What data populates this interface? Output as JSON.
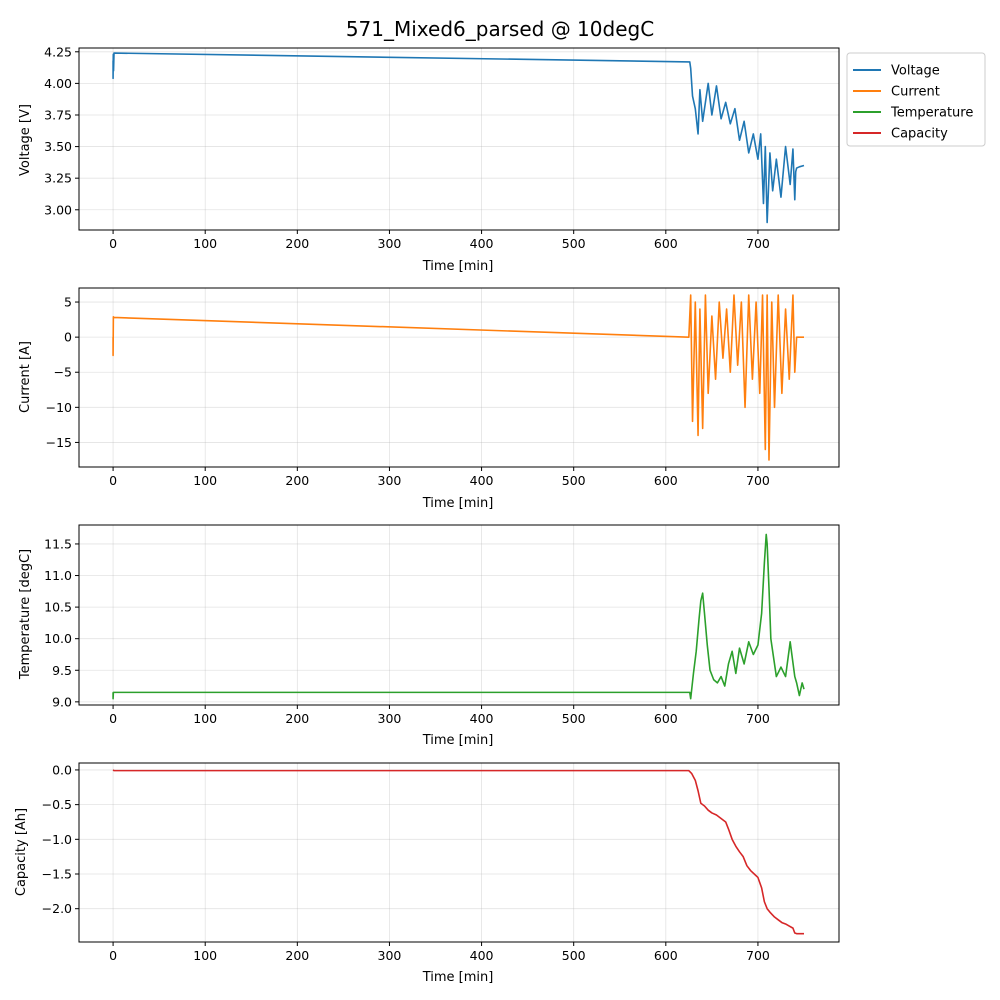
{
  "title": "571_Mixed6_parsed @ 10degC",
  "legend": {
    "placement": "outside-top-right",
    "entries": [
      {
        "label": "Voltage",
        "color": "#1f77b4"
      },
      {
        "label": "Current",
        "color": "#ff7f0e"
      },
      {
        "label": "Temperature",
        "color": "#2ca02c"
      },
      {
        "label": "Capacity",
        "color": "#d62728"
      }
    ]
  },
  "chart_data": [
    {
      "type": "line",
      "name": "voltage",
      "xlabel": "Time [min]",
      "ylabel": "Voltage [V]",
      "xlim": [
        -37,
        788
      ],
      "ylim": [
        2.84,
        4.28
      ],
      "xticks": [
        0,
        100,
        200,
        300,
        400,
        500,
        600,
        700
      ],
      "yticks": [
        3.0,
        3.25,
        3.5,
        3.75,
        4.0,
        4.25
      ],
      "ytick_labels": [
        "3.00",
        "3.25",
        "3.50",
        "3.75",
        "4.00",
        "4.25"
      ],
      "grid": true,
      "color": "#1f77b4",
      "series": [
        {
          "x": [
            0,
            0,
            0.2,
            0.5,
            1,
            626,
            627,
            629,
            632,
            635,
            637,
            640,
            643,
            646,
            650,
            655,
            660,
            665,
            670,
            675,
            680,
            685,
            690,
            695,
            700,
            703,
            706,
            708,
            710,
            713,
            716,
            720,
            725,
            730,
            735,
            738,
            740,
            741,
            742,
            745,
            750
          ],
          "y": [
            4.18,
            4.04,
            4.23,
            4.1,
            4.24,
            4.17,
            4.12,
            3.9,
            3.8,
            3.6,
            3.95,
            3.7,
            3.85,
            4.0,
            3.75,
            3.98,
            3.72,
            3.85,
            3.68,
            3.8,
            3.55,
            3.7,
            3.45,
            3.6,
            3.4,
            3.6,
            3.05,
            3.5,
            2.9,
            3.45,
            3.15,
            3.4,
            3.1,
            3.5,
            3.2,
            3.48,
            3.08,
            3.3,
            3.33,
            3.34,
            3.35
          ]
        }
      ]
    },
    {
      "type": "line",
      "name": "current",
      "xlabel": "Time [min]",
      "ylabel": "Current [A]",
      "xlim": [
        -37,
        788
      ],
      "ylim": [
        -18.5,
        7.0
      ],
      "xticks": [
        0,
        100,
        200,
        300,
        400,
        500,
        600,
        700
      ],
      "yticks": [
        -15,
        -10,
        -5,
        0,
        5
      ],
      "ytick_labels": [
        "−15",
        "−10",
        "−5",
        "0",
        "5"
      ],
      "grid": true,
      "color": "#ff7f0e",
      "series": [
        {
          "x": [
            0,
            0,
            0.3,
            1,
            625,
            627,
            629,
            632,
            635,
            637,
            640,
            643,
            646,
            650,
            654,
            658,
            662,
            666,
            670,
            674,
            678,
            682,
            686,
            690,
            694,
            698,
            702,
            705,
            708,
            710,
            712,
            715,
            718,
            722,
            726,
            730,
            734,
            738,
            740,
            742,
            750
          ],
          "y": [
            0,
            -2.6,
            2.9,
            2.8,
            0,
            6,
            -12,
            5,
            -14,
            4,
            -13,
            6,
            -8,
            3,
            -6,
            5,
            -3,
            4,
            -5,
            6,
            -4,
            5,
            -10,
            6,
            -6,
            5,
            -8,
            6,
            -16,
            6,
            -17.5,
            5,
            -10,
            6,
            -8,
            4,
            -6,
            6,
            -5,
            0,
            0
          ]
        }
      ]
    },
    {
      "type": "line",
      "name": "temperature",
      "xlabel": "Time [min]",
      "ylabel": "Temperature [degC]",
      "xlim": [
        -37,
        788
      ],
      "ylim": [
        8.95,
        11.8
      ],
      "xticks": [
        0,
        100,
        200,
        300,
        400,
        500,
        600,
        700
      ],
      "yticks": [
        9.0,
        9.5,
        10.0,
        10.5,
        11.0,
        11.5
      ],
      "ytick_labels": [
        "9.0",
        "9.5",
        "10.0",
        "10.5",
        "11.0",
        "11.5"
      ],
      "grid": true,
      "color": "#2ca02c",
      "series": [
        {
          "x": [
            0,
            0,
            0.3,
            1,
            626,
            627,
            630,
            633,
            636,
            638,
            640,
            642,
            645,
            648,
            652,
            656,
            660,
            664,
            668,
            672,
            676,
            680,
            685,
            690,
            695,
            700,
            704,
            707,
            709,
            710,
            712,
            714,
            717,
            720,
            725,
            730,
            735,
            740,
            742,
            745,
            748,
            750
          ],
          "y": [
            9.15,
            9.05,
            9.15,
            9.15,
            9.15,
            9.05,
            9.45,
            9.8,
            10.3,
            10.6,
            10.72,
            10.4,
            9.9,
            9.5,
            9.35,
            9.3,
            9.4,
            9.25,
            9.6,
            9.8,
            9.45,
            9.85,
            9.6,
            9.95,
            9.75,
            9.9,
            10.4,
            11.2,
            11.65,
            11.5,
            10.8,
            10.0,
            9.7,
            9.4,
            9.55,
            9.4,
            9.95,
            9.4,
            9.3,
            9.1,
            9.3,
            9.2
          ]
        }
      ]
    },
    {
      "type": "line",
      "name": "capacity",
      "xlabel": "Time [min]",
      "ylabel": "Capacity [Ah]",
      "xlim": [
        -37,
        788
      ],
      "ylim": [
        -2.48,
        0.1
      ],
      "xticks": [
        0,
        100,
        200,
        300,
        400,
        500,
        600,
        700
      ],
      "yticks": [
        -2.0,
        -1.5,
        -1.0,
        -0.5,
        0.0
      ],
      "ytick_labels": [
        "−2.0",
        "−1.5",
        "−1.0",
        "−0.5",
        "0.0"
      ],
      "grid": true,
      "color": "#d62728",
      "series": [
        {
          "x": [
            0,
            1,
            625,
            628,
            632,
            635,
            638,
            642,
            646,
            650,
            655,
            660,
            665,
            668,
            672,
            676,
            680,
            684,
            688,
            692,
            696,
            700,
            704,
            707,
            710,
            713,
            718,
            722,
            726,
            730,
            734,
            738,
            740,
            742,
            745,
            750
          ],
          "y": [
            0.0,
            -0.01,
            -0.01,
            -0.05,
            -0.15,
            -0.3,
            -0.48,
            -0.52,
            -0.58,
            -0.62,
            -0.65,
            -0.7,
            -0.75,
            -0.85,
            -1.0,
            -1.1,
            -1.18,
            -1.25,
            -1.38,
            -1.45,
            -1.5,
            -1.55,
            -1.7,
            -1.9,
            -2.0,
            -2.05,
            -2.12,
            -2.16,
            -2.2,
            -2.22,
            -2.25,
            -2.28,
            -2.35,
            -2.36,
            -2.36,
            -2.36
          ]
        }
      ]
    }
  ]
}
